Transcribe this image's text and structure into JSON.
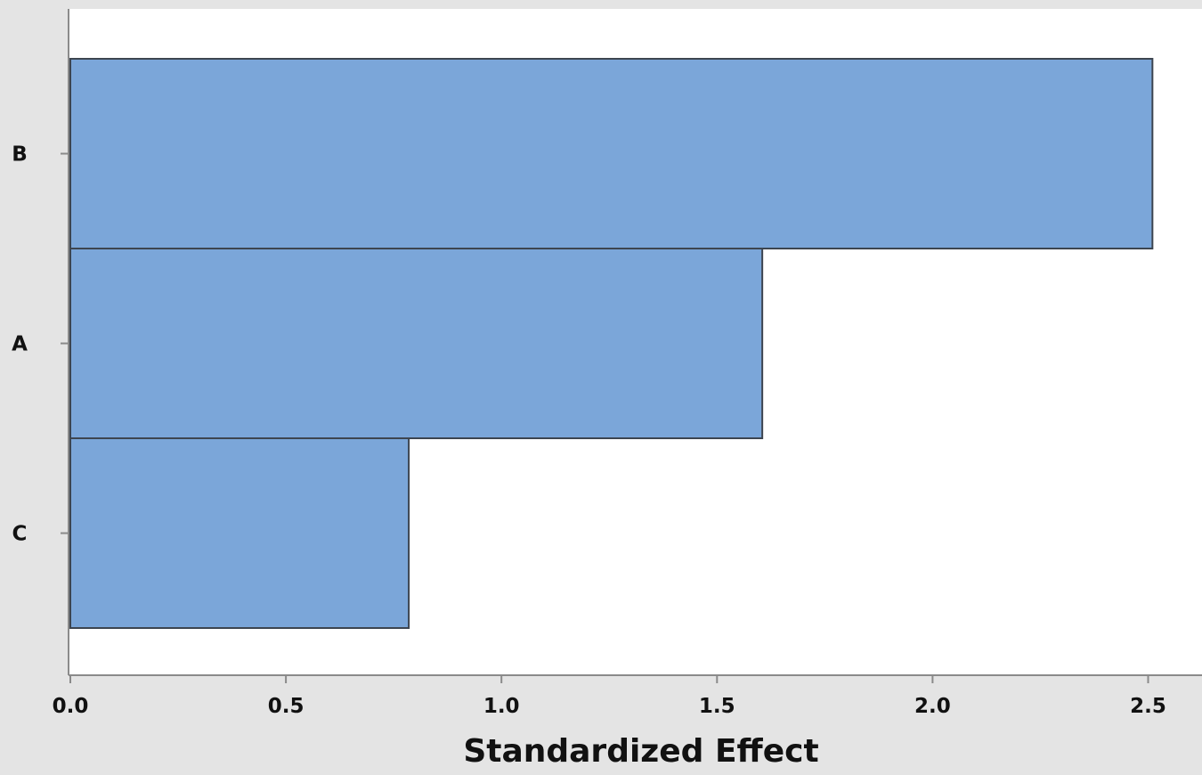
{
  "chart_data": {
    "type": "bar",
    "orientation": "horizontal",
    "categories": [
      "B",
      "A",
      "C"
    ],
    "values": [
      2.51,
      1.605,
      0.785
    ],
    "xlabel": "Standardized Effect",
    "ylabel": "",
    "xlim": [
      0,
      2.6
    ],
    "xticks": [
      "0.0",
      "0.5",
      "1.0",
      "1.5",
      "2.0",
      "2.5"
    ],
    "grid": false,
    "colors": {
      "bar_fill": "#7ba6d9",
      "bar_stroke": "#3d4550",
      "plot_bg": "#ffffff",
      "figure_bg": "#e4e4e4",
      "axis": "#8a8a8a"
    }
  }
}
